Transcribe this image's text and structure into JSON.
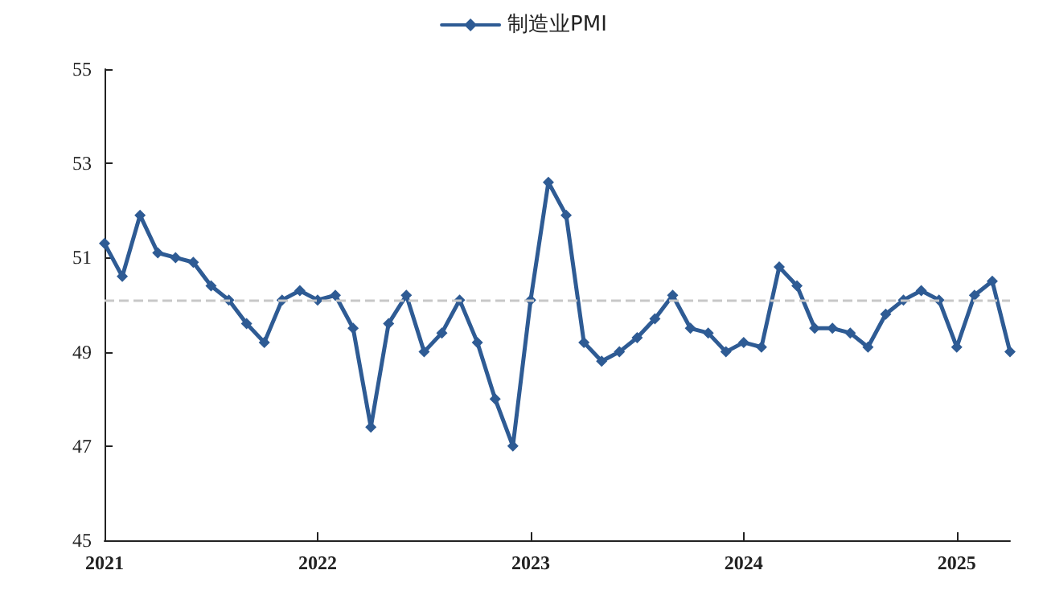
{
  "chart_data": {
    "type": "line",
    "categories": [
      "2021",
      null,
      null,
      null,
      null,
      null,
      null,
      null,
      null,
      null,
      null,
      null,
      "2022",
      null,
      null,
      null,
      null,
      null,
      null,
      null,
      null,
      null,
      null,
      null,
      "2023",
      null,
      null,
      null,
      null,
      null,
      null,
      null,
      null,
      null,
      null,
      null,
      "2024",
      null,
      null,
      null,
      null,
      null,
      null,
      null,
      null,
      null,
      null,
      null,
      "2025",
      null,
      null,
      null
    ],
    "series": [
      {
        "name": "制造业PMI",
        "color": "#2e5b94",
        "values": [
          51.3,
          50.6,
          51.9,
          51.1,
          51.0,
          50.9,
          50.4,
          50.1,
          49.6,
          49.2,
          50.1,
          50.3,
          50.1,
          50.2,
          49.5,
          47.4,
          49.6,
          50.2,
          49.0,
          49.4,
          50.1,
          49.2,
          48.0,
          47.0,
          50.1,
          52.6,
          51.9,
          49.2,
          48.8,
          49.0,
          49.3,
          49.7,
          50.2,
          49.5,
          49.4,
          49.0,
          49.2,
          49.1,
          50.8,
          50.4,
          49.5,
          49.5,
          49.4,
          49.1,
          49.8,
          50.1,
          50.3,
          50.1,
          49.1,
          50.2,
          50.5,
          49.0
        ]
      }
    ],
    "ylim": [
      45,
      55
    ],
    "yticks": [
      45,
      47,
      49,
      51,
      53,
      55
    ],
    "ref_lines": [
      {
        "axis": "y",
        "value": 50.1,
        "color": "#c8c8c8",
        "line_style": "dashed"
      }
    ],
    "legend": "top",
    "marker": "diamond",
    "line_style": "solid",
    "grid": false
  }
}
